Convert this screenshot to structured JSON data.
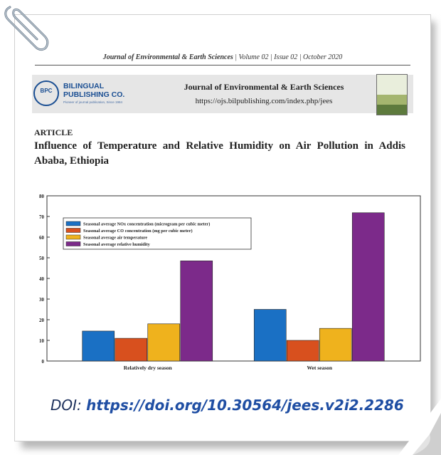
{
  "header": {
    "journal_name": "Journal of Environmental & Earth Sciences",
    "issue_info": " | Volume 02 | Issue 02 | October 2020"
  },
  "banner": {
    "publisher_line1": "BILINGUAL",
    "publisher_line2": "PUBLISHING CO.",
    "logo_abbrev": "BPC",
    "publisher_tagline": "Pioneer of journal publication, Since 1984",
    "journal_title": "Journal of Environmental & Earth Sciences",
    "url": "https://ojs.bilpublishing.com/index.php/jees"
  },
  "article": {
    "label": "ARTICLE",
    "title": "Influence of Temperature and Relative Humidity on Air Pollution in Addis Ababa, Ethiopia"
  },
  "doi": {
    "label": "DOI: ",
    "value": "https://doi.org/10.30564/jees.v2i2.2286"
  },
  "chart_data": {
    "type": "bar",
    "categories": [
      "Relatively dry season",
      "Wet season"
    ],
    "series": [
      {
        "name": "Seasonal average NOx concentration (microgram per cubic meter)",
        "color": "#1a70c4",
        "values": [
          14.5,
          25
        ]
      },
      {
        "name": "Seasonal average CO concentration (mg per cubic meter)",
        "color": "#d8501e",
        "values": [
          11,
          10
        ]
      },
      {
        "name": "Seasonal average air temperature",
        "color": "#efb21d",
        "values": [
          18,
          15.8
        ]
      },
      {
        "name": "Seasonal average relative humidity",
        "color": "#7c2a8a",
        "values": [
          48.5,
          71.8
        ]
      }
    ],
    "ylim": [
      0,
      80
    ],
    "yticks": [
      0,
      10,
      20,
      30,
      40,
      50,
      60,
      70,
      80
    ],
    "legend": "top-left",
    "grid": false
  }
}
